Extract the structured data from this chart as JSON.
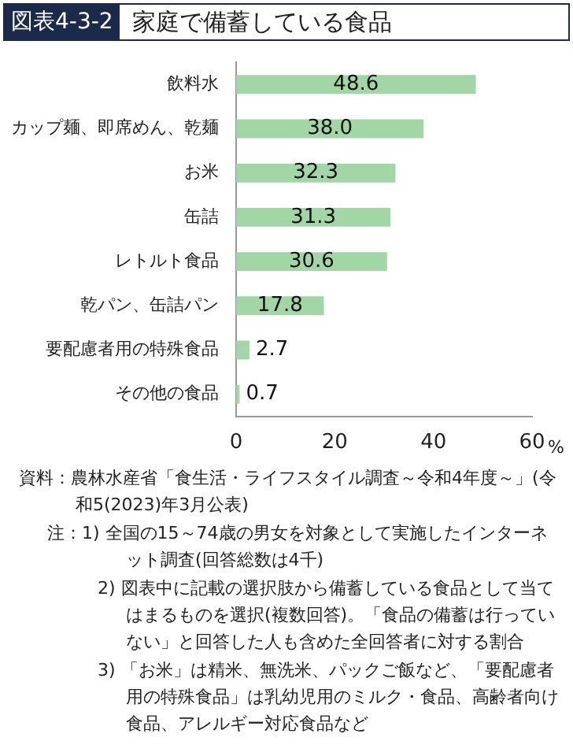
{
  "chart_data": {
    "type": "bar",
    "orientation": "horizontal",
    "subtitle": "図表4-3-2",
    "title": "家庭で備蓄している食品",
    "categories": [
      "飲料水",
      "カップ麺、即席めん、乾麺",
      "お米",
      "缶詰",
      "レトルト食品",
      "乾パン、缶詰パン",
      "要配慮者用の特殊食品",
      "その他の食品"
    ],
    "values": [
      48.6,
      38.0,
      32.3,
      31.3,
      30.6,
      17.8,
      2.7,
      0.7
    ],
    "value_labels": [
      "48.6",
      "38.0",
      "32.3",
      "31.3",
      "30.6",
      "17.8",
      "2.7",
      "0.7"
    ],
    "color": "#a3d6a7",
    "xlim": [
      0,
      60
    ],
    "xticks": [
      0,
      20,
      40,
      60
    ],
    "xlabel": "%",
    "grid": false,
    "legend": false,
    "annotations": [
      "資料：農林水産省「食生活・ライフスタイル調査～令和4年度～」(令和5(2023)年3月公表)",
      "注：1) 全国の15～74歳の男女を対象として実施したインターネット調査(回答総数は4千)",
      "2) 図表中に記載の選択肢から備蓄している食品として当てはまるものを選択(複数回答)。「食品の備蓄は行っていない」と回答した人も含めた全回答者に対する割合",
      "3) 「お米」は精米、無洗米、パックご飯など、「要配慮者用の特殊食品」は乳幼児用のミルク・食品、高齢者向け食品、アレルギー対応食品など"
    ]
  }
}
